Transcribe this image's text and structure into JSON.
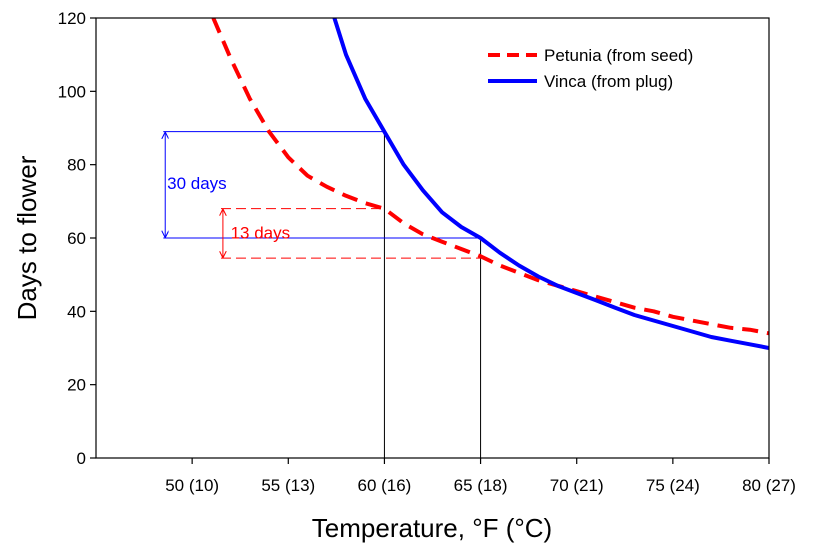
{
  "chart_data": {
    "type": "line",
    "title": "",
    "xlabel": "Temperature, °F (°C)",
    "ylabel": "Days to flower",
    "xlim": [
      45,
      80
    ],
    "ylim": [
      0,
      120
    ],
    "x_ticks": [
      {
        "value": 50,
        "label": "50 (10)"
      },
      {
        "value": 55,
        "label": "55 (13)"
      },
      {
        "value": 60,
        "label": "60 (16)"
      },
      {
        "value": 65,
        "label": "65 (18)"
      },
      {
        "value": 70,
        "label": "70 (21)"
      },
      {
        "value": 75,
        "label": "75 (24)"
      },
      {
        "value": 80,
        "label": "80 (27)"
      }
    ],
    "y_ticks": [
      {
        "value": 0,
        "label": "0"
      },
      {
        "value": 20,
        "label": "20"
      },
      {
        "value": 40,
        "label": "40"
      },
      {
        "value": 60,
        "label": "60"
      },
      {
        "value": 80,
        "label": "80"
      },
      {
        "value": 100,
        "label": "100"
      },
      {
        "value": 120,
        "label": "120"
      }
    ],
    "grid": false,
    "legend_position": "top-right",
    "series": [
      {
        "name": "Petunia (from seed)",
        "color": "#ff0000",
        "dash": "dashed",
        "x": [
          51.1,
          52,
          53,
          54,
          55,
          56,
          57,
          58,
          59,
          60,
          61,
          62,
          63,
          64,
          65,
          66,
          67,
          68,
          69,
          70,
          71,
          72,
          73,
          74,
          75,
          76,
          77,
          78,
          79,
          80
        ],
        "y": [
          120,
          109,
          98,
          89,
          82,
          77,
          74,
          71.5,
          69.5,
          68,
          64,
          61,
          59,
          57,
          55,
          52.5,
          50.5,
          48.5,
          47,
          45.5,
          44,
          42.5,
          41,
          40,
          38.5,
          37.5,
          36.5,
          35.5,
          35,
          34
        ]
      },
      {
        "name": "Vinca (from plug)",
        "color": "#0000ff",
        "dash": "solid",
        "x": [
          57.4,
          58,
          59,
          60,
          61,
          62,
          63,
          64,
          65,
          66,
          67,
          68,
          69,
          70,
          71,
          72,
          73,
          74,
          75,
          76,
          77,
          78,
          79,
          80
        ],
        "y": [
          120,
          110,
          98,
          89,
          80,
          73,
          67,
          63,
          60,
          56,
          52.5,
          49.5,
          47,
          45,
          43,
          41,
          39,
          37.5,
          36,
          34.5,
          33,
          32,
          31,
          30
        ]
      }
    ],
    "reference_lines": [
      {
        "name": "vinca-60-vertical",
        "color": "#000000",
        "x1": 60,
        "y1": 0,
        "x2": 60,
        "y2": 89
      },
      {
        "name": "vinca-65-vertical",
        "color": "#000000",
        "x1": 65,
        "y1": 0,
        "x2": 65,
        "y2": 60
      },
      {
        "name": "vinca-89-horizontal",
        "color": "#0000ff",
        "x1": 48.5,
        "y1": 89,
        "x2": 60,
        "y2": 89
      },
      {
        "name": "vinca-60-horizontal",
        "color": "#0000ff",
        "x1": 48.5,
        "y1": 60,
        "x2": 65,
        "y2": 60
      }
    ],
    "dashed_reference_lines": [
      {
        "name": "petunia-68-horizontal",
        "color": "#ff0000",
        "x1": 51.5,
        "y1": 68,
        "x2": 60,
        "y2": 68
      },
      {
        "name": "petunia-54-horizontal",
        "color": "#ff0000",
        "x1": 51.5,
        "y1": 54.5,
        "x2": 65,
        "y2": 54.5
      }
    ],
    "annotations": [
      {
        "name": "vinca-difference",
        "text": "30 days",
        "color": "#0000ff",
        "x": 48.6,
        "y1": 89,
        "y2": 60,
        "label_x": 48.7,
        "label_y": 75
      },
      {
        "name": "petunia-difference",
        "text": "13 days",
        "color": "#ff0000",
        "x": 51.6,
        "y1": 68,
        "y2": 54.5,
        "label_x": 52.0,
        "label_y": 61.5
      }
    ]
  }
}
